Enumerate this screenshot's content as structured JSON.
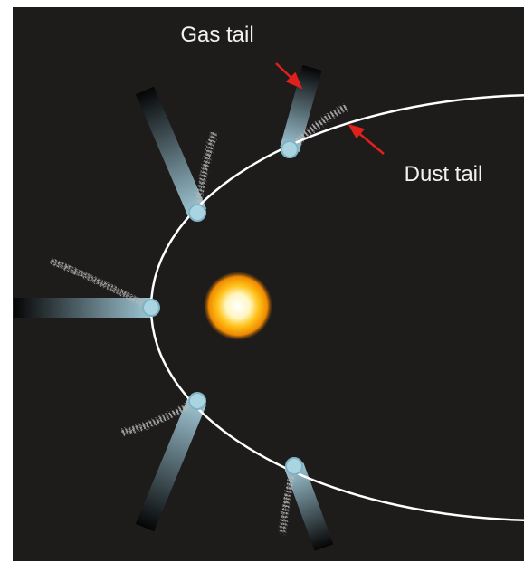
{
  "labels": {
    "gas_tail": "Gas tail",
    "dust_tail": "Dust tail"
  }
}
